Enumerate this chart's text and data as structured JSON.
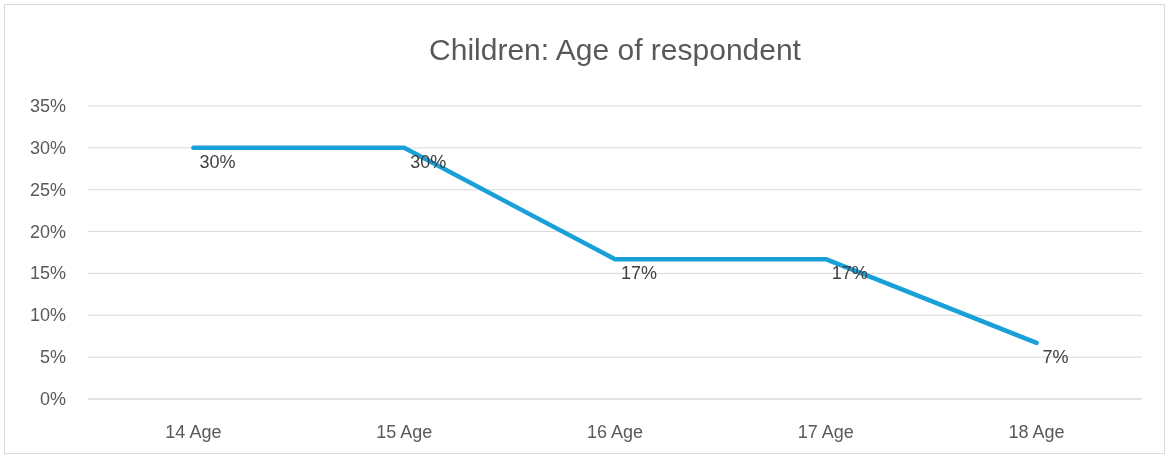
{
  "chart_data": {
    "type": "line",
    "title": "Children: Age of respondent",
    "categories": [
      "14 Age",
      "15 Age",
      "16 Age",
      "17 Age",
      "18 Age"
    ],
    "series": [
      {
        "color": "#1aa0d8",
        "values": [
          30,
          30,
          16.7,
          16.7,
          6.7
        ],
        "value_labels": [
          "30%",
          "30%",
          "17%",
          "17%",
          "7%"
        ]
      }
    ],
    "ylim": [
      0,
      35
    ],
    "yticks": [
      {
        "value": 0,
        "label": "0%"
      },
      {
        "value": 5,
        "label": "5%"
      },
      {
        "value": 10,
        "label": "10%"
      },
      {
        "value": 15,
        "label": "15%"
      },
      {
        "value": 20,
        "label": "20%"
      },
      {
        "value": 25,
        "label": "25%"
      },
      {
        "value": 30,
        "label": "30%"
      },
      {
        "value": 35,
        "label": "35%"
      }
    ],
    "grid": "y",
    "marker": "none",
    "line_style": "solid"
  }
}
